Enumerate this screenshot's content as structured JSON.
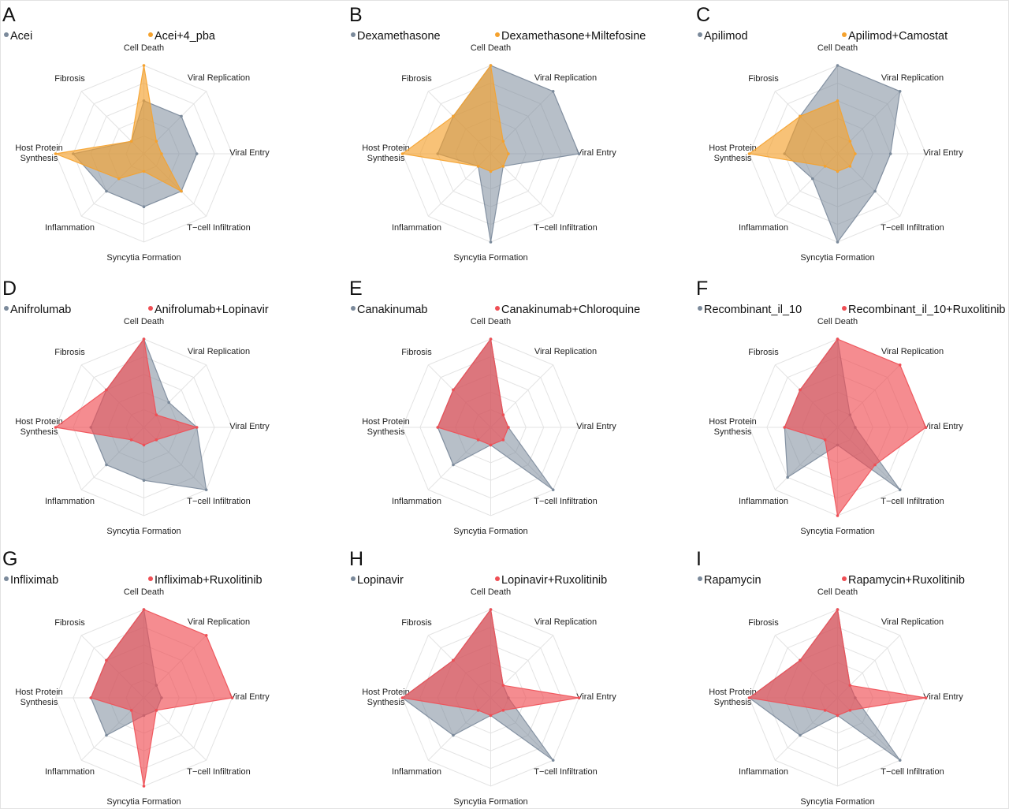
{
  "chart_data": {
    "type": "radar",
    "axes": [
      "Cell Death",
      "Viral Replication",
      "Viral Entry",
      "T−cell Infiltration",
      "Syncytia Formation",
      "Inflammation",
      "Host Protein Synthesis",
      "Fibrosis"
    ],
    "range": [
      0,
      1
    ],
    "rings": 5,
    "grid": true,
    "legend_placement": "top",
    "colors": {
      "single": "#7b8a9b",
      "combo_orange": "#f5a22e",
      "combo_red": "#ef4f55"
    },
    "panels": [
      {
        "letter": "A",
        "series": [
          {
            "name": "Acei",
            "color": "#7b8a9b",
            "values": [
              0.6,
              0.6,
              0.6,
              0.6,
              0.6,
              0.6,
              0.8,
              0.2
            ]
          },
          {
            "name": "Acei+4_pba",
            "color": "#f5a22e",
            "values": [
              1.0,
              0.2,
              0.2,
              0.6,
              0.2,
              0.4,
              1.0,
              0.2
            ]
          }
        ]
      },
      {
        "letter": "B",
        "series": [
          {
            "name": "Dexamethasone",
            "color": "#7b8a9b",
            "values": [
              1.0,
              1.0,
              1.0,
              0.2,
              1.0,
              0.2,
              0.6,
              0.6
            ]
          },
          {
            "name": "Dexamethasone+Miltefosine",
            "color": "#f5a22e",
            "values": [
              1.0,
              0.2,
              0.2,
              0.2,
              0.2,
              0.2,
              1.0,
              0.6
            ]
          }
        ]
      },
      {
        "letter": "C",
        "series": [
          {
            "name": "Apilimod",
            "color": "#7b8a9b",
            "values": [
              1.0,
              1.0,
              0.6,
              0.6,
              1.0,
              0.4,
              0.6,
              0.6
            ]
          },
          {
            "name": "Apilimod+Camostat",
            "color": "#f5a22e",
            "values": [
              0.6,
              0.2,
              0.2,
              0.2,
              0.2,
              0.2,
              1.0,
              0.6
            ]
          }
        ]
      },
      {
        "letter": "D",
        "series": [
          {
            "name": "Anifrolumab",
            "color": "#7b8a9b",
            "values": [
              1.0,
              0.4,
              0.6,
              1.0,
              0.6,
              0.6,
              0.6,
              0.6
            ]
          },
          {
            "name": "Anifrolumab+Lopinavir",
            "color": "#ef4f55",
            "values": [
              1.0,
              0.2,
              0.6,
              0.2,
              0.2,
              0.2,
              1.0,
              0.6
            ]
          }
        ]
      },
      {
        "letter": "E",
        "series": [
          {
            "name": "Canakinumab",
            "color": "#7b8a9b",
            "values": [
              1.0,
              0.2,
              0.2,
              1.0,
              0.2,
              0.6,
              0.6,
              0.6
            ]
          },
          {
            "name": "Canakinumab+Chloroquine",
            "color": "#ef4f55",
            "values": [
              1.0,
              0.2,
              0.2,
              0.2,
              0.2,
              0.2,
              0.6,
              0.6
            ]
          }
        ]
      },
      {
        "letter": "F",
        "series": [
          {
            "name": "Recombinant_il_10",
            "color": "#7b8a9b",
            "values": [
              1.0,
              0.2,
              0.2,
              1.0,
              0.2,
              0.8,
              0.6,
              0.6
            ]
          },
          {
            "name": "Recombinant_il_10+Ruxolitinib",
            "color": "#ef4f55",
            "values": [
              1.0,
              1.0,
              1.0,
              0.6,
              1.0,
              0.2,
              0.6,
              0.6
            ]
          }
        ]
      },
      {
        "letter": "G",
        "series": [
          {
            "name": "Infliximab",
            "color": "#7b8a9b",
            "values": [
              1.0,
              0.2,
              0.2,
              0.2,
              0.2,
              0.6,
              0.6,
              0.6
            ]
          },
          {
            "name": "Infliximab+Ruxolitinib",
            "color": "#ef4f55",
            "values": [
              1.0,
              1.0,
              1.0,
              0.2,
              1.0,
              0.2,
              0.6,
              0.6
            ]
          }
        ]
      },
      {
        "letter": "H",
        "series": [
          {
            "name": "Lopinavir",
            "color": "#7b8a9b",
            "values": [
              1.0,
              0.2,
              0.2,
              1.0,
              0.2,
              0.6,
              1.0,
              0.6
            ]
          },
          {
            "name": "Lopinavir+Ruxolitinib",
            "color": "#ef4f55",
            "values": [
              1.0,
              0.2,
              1.0,
              0.2,
              0.2,
              0.2,
              1.0,
              0.6
            ]
          }
        ]
      },
      {
        "letter": "I",
        "series": [
          {
            "name": "Rapamycin",
            "color": "#7b8a9b",
            "values": [
              1.0,
              0.2,
              0.2,
              1.0,
              0.2,
              0.6,
              1.0,
              0.6
            ]
          },
          {
            "name": "Rapamycin+Ruxolitinib",
            "color": "#ef4f55",
            "values": [
              1.0,
              0.2,
              1.0,
              0.2,
              0.2,
              0.2,
              1.0,
              0.6
            ]
          }
        ]
      }
    ]
  }
}
